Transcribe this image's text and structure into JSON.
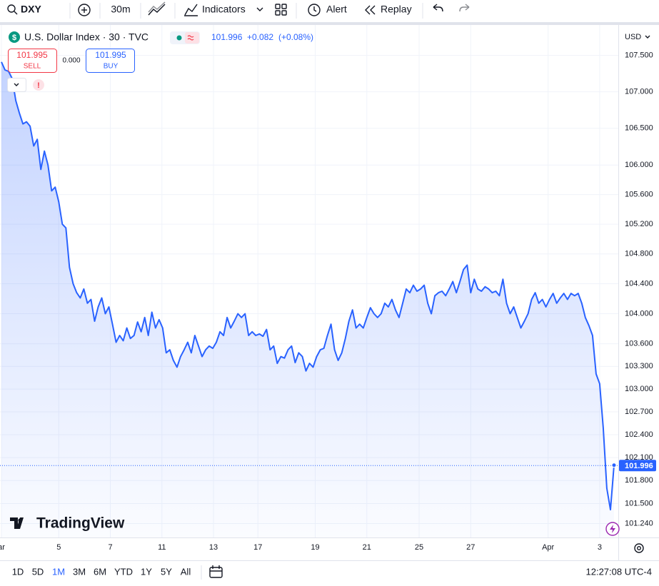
{
  "toolbar": {
    "symbol": "DXY",
    "interval": "30m",
    "indicators": "Indicators",
    "alert": "Alert",
    "replay": "Replay"
  },
  "legend": {
    "title": "U.S. Dollar Index · 30 · TVC",
    "price": "101.996",
    "change": "+0.082",
    "change_pct": "(+0.08%)"
  },
  "trade": {
    "sell_price": "101.995",
    "sell": "SELL",
    "spread": "0.000",
    "buy_price": "101.995",
    "buy": "BUY"
  },
  "currency": "USD",
  "logo": "TradingView",
  "ranges": [
    "1D",
    "5D",
    "1M",
    "3M",
    "6M",
    "YTD",
    "1Y",
    "5Y",
    "All"
  ],
  "active_range_index": 2,
  "clock": "12:27:08 UTC-4",
  "chart_data": {
    "type": "line",
    "color": "#2962ff",
    "log_scale": true,
    "grid": true,
    "last_price": 101.996,
    "values": [
      107.41,
      107.3,
      107.28,
      107.18,
      106.88,
      106.71,
      106.56,
      106.59,
      106.53,
      106.26,
      106.35,
      105.94,
      106.19,
      106.0,
      105.65,
      105.7,
      105.5,
      105.2,
      105.15,
      104.62,
      104.4,
      104.28,
      104.21,
      104.33,
      104.14,
      104.19,
      103.9,
      104.09,
      104.21,
      104.0,
      104.09,
      103.86,
      103.62,
      103.71,
      103.64,
      103.81,
      103.67,
      103.71,
      103.89,
      103.76,
      103.95,
      103.71,
      104.02,
      103.81,
      103.92,
      103.81,
      103.48,
      103.52,
      103.38,
      103.29,
      103.43,
      103.52,
      103.62,
      103.48,
      103.71,
      103.57,
      103.43,
      103.52,
      103.57,
      103.54,
      103.62,
      103.76,
      103.71,
      103.95,
      103.81,
      103.9,
      104.0,
      103.95,
      104.0,
      103.71,
      103.76,
      103.71,
      103.73,
      103.7,
      103.79,
      103.52,
      103.57,
      103.34,
      103.43,
      103.41,
      103.52,
      103.57,
      103.35,
      103.48,
      103.43,
      103.24,
      103.34,
      103.29,
      103.43,
      103.52,
      103.54,
      103.71,
      103.86,
      103.52,
      103.38,
      103.48,
      103.67,
      103.9,
      104.05,
      103.81,
      103.86,
      103.81,
      103.95,
      104.08,
      104.0,
      103.95,
      104.0,
      104.14,
      104.09,
      104.19,
      104.05,
      103.95,
      104.14,
      104.33,
      104.28,
      104.38,
      104.3,
      104.33,
      104.38,
      104.14,
      104.0,
      104.24,
      104.28,
      104.3,
      104.24,
      104.33,
      104.43,
      104.28,
      104.43,
      104.59,
      104.65,
      104.28,
      104.46,
      104.33,
      104.3,
      104.36,
      104.33,
      104.28,
      104.3,
      104.24,
      104.46,
      104.14,
      104.0,
      104.09,
      103.95,
      103.81,
      103.9,
      104.0,
      104.19,
      104.28,
      104.14,
      104.19,
      104.09,
      104.19,
      104.27,
      104.14,
      104.21,
      104.27,
      104.19,
      104.27,
      104.24,
      104.27,
      104.14,
      103.95,
      103.84,
      103.71,
      103.2,
      103.07,
      102.49,
      101.7,
      101.42,
      102.0
    ],
    "xlim": [
      -0.4,
      172.2
    ],
    "xticks": [
      {
        "value": 0,
        "label": "ar"
      },
      {
        "value": 16,
        "label": "5"
      },
      {
        "value": 30.4,
        "label": "7"
      },
      {
        "value": 44.8,
        "label": "11"
      },
      {
        "value": 59.2,
        "label": "13"
      },
      {
        "value": 71.6,
        "label": "17"
      },
      {
        "value": 87.6,
        "label": "19"
      },
      {
        "value": 102,
        "label": "21"
      },
      {
        "value": 116.6,
        "label": "25"
      },
      {
        "value": 131,
        "label": "27"
      },
      {
        "value": 152.6,
        "label": "Apr"
      },
      {
        "value": 167,
        "label": "3"
      }
    ],
    "ylim": [
      101.06,
      107.92
    ],
    "yticks": [
      {
        "value": 107.5,
        "label": "107.500"
      },
      {
        "value": 107.0,
        "label": "107.000"
      },
      {
        "value": 106.5,
        "label": "106.500"
      },
      {
        "value": 106.0,
        "label": "106.000"
      },
      {
        "value": 105.6,
        "label": "105.600"
      },
      {
        "value": 105.2,
        "label": "105.200"
      },
      {
        "value": 104.8,
        "label": "104.800"
      },
      {
        "value": 104.4,
        "label": "104.400"
      },
      {
        "value": 104.0,
        "label": "104.000"
      },
      {
        "value": 103.6,
        "label": "103.600"
      },
      {
        "value": 103.3,
        "label": "103.300"
      },
      {
        "value": 103.0,
        "label": "103.000"
      },
      {
        "value": 102.7,
        "label": "102.700"
      },
      {
        "value": 102.4,
        "label": "102.400"
      },
      {
        "value": 102.1,
        "label": "102.100"
      },
      {
        "value": 101.8,
        "label": "101.800"
      },
      {
        "value": 101.5,
        "label": "101.500"
      },
      {
        "value": 101.24,
        "label": "101.240"
      }
    ]
  }
}
